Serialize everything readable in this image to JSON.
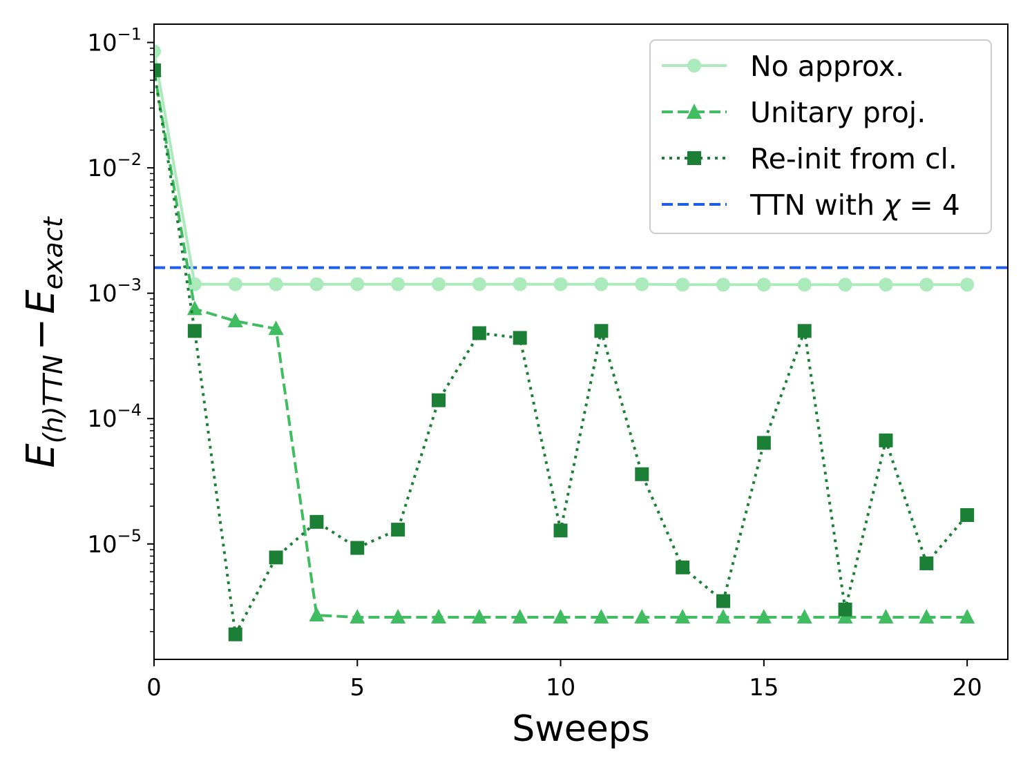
{
  "chart_data": {
    "type": "line",
    "xlabel": "Sweeps",
    "ylabel": {
      "base": "E",
      "sub1": "(h)TTN",
      "minus": "−",
      "base2": "E",
      "sub2": "exact"
    },
    "xlim": [
      0,
      21
    ],
    "ylim": [
      1.2e-06,
      0.14
    ],
    "yscale": "log",
    "grid": false,
    "legend_position": "top-right",
    "x_ticks": [
      {
        "value": 0,
        "label": "0"
      },
      {
        "value": 5,
        "label": "5"
      },
      {
        "value": 10,
        "label": "10"
      },
      {
        "value": 15,
        "label": "15"
      },
      {
        "value": 20,
        "label": "20"
      }
    ],
    "y_ticks": [
      {
        "value": 0.1,
        "base": "10",
        "exp": "−1"
      },
      {
        "value": 0.01,
        "base": "10",
        "exp": "−2"
      },
      {
        "value": 0.001,
        "base": "10",
        "exp": "−3"
      },
      {
        "value": 0.0001,
        "base": "10",
        "exp": "−4"
      },
      {
        "value": 1e-05,
        "base": "10",
        "exp": "−5"
      }
    ],
    "x": [
      0,
      1,
      2,
      3,
      4,
      5,
      6,
      7,
      8,
      9,
      10,
      11,
      12,
      13,
      14,
      15,
      16,
      17,
      18,
      19,
      20
    ],
    "series": [
      {
        "name": "No approx.",
        "color": "#abebbb",
        "linestyle": "solid",
        "marker": "circle",
        "values": [
          0.085,
          0.00118,
          0.00118,
          0.00118,
          0.00118,
          0.00118,
          0.00118,
          0.00118,
          0.00118,
          0.00118,
          0.00118,
          0.00118,
          0.00118,
          0.00117,
          0.00117,
          0.00117,
          0.00117,
          0.00117,
          0.00117,
          0.00117,
          0.00117
        ]
      },
      {
        "name": "Unitary proj.",
        "color": "#40bd60",
        "linestyle": "dashed",
        "marker": "triangle",
        "values": [
          0.06,
          0.00075,
          0.0006,
          0.00052,
          2.7e-06,
          2.6e-06,
          2.6e-06,
          2.6e-06,
          2.6e-06,
          2.6e-06,
          2.6e-06,
          2.6e-06,
          2.6e-06,
          2.6e-06,
          2.6e-06,
          2.6e-06,
          2.6e-06,
          2.6e-06,
          2.6e-06,
          2.6e-06,
          2.6e-06
        ]
      },
      {
        "name": "Re-init from cl.",
        "color": "#1b7f36",
        "linestyle": "dotted",
        "marker": "square",
        "values": [
          0.06,
          0.0005,
          1.9e-06,
          7.8e-06,
          1.5e-05,
          9.3e-06,
          1.3e-05,
          0.00014,
          0.00048,
          0.00044,
          1.28e-05,
          0.0005,
          3.6e-05,
          6.5e-06,
          3.5e-06,
          6.4e-05,
          0.0005,
          3e-06,
          6.7e-05,
          7e-06,
          1.7e-05
        ]
      }
    ],
    "reference_line": {
      "name": "TTN with χ = 4",
      "name_prefix": "TTN with ",
      "name_var": "χ",
      "name_suffix": " = 4",
      "value": 0.0016,
      "color": "#1f5ee8",
      "linestyle": "dashed"
    }
  }
}
